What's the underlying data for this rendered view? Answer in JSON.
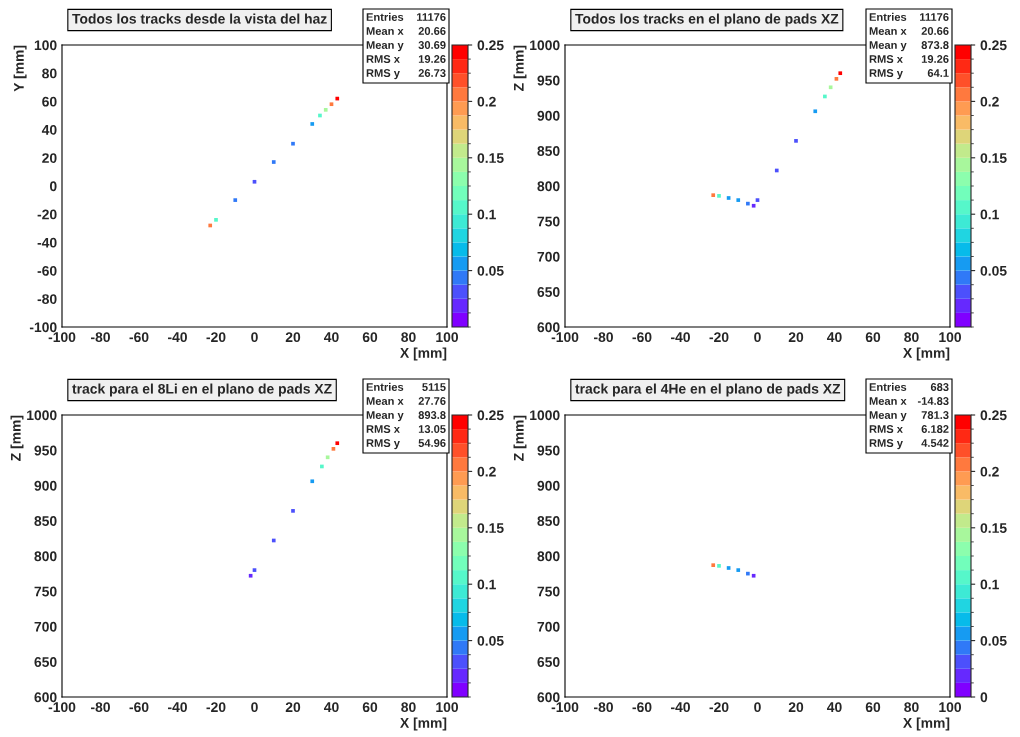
{
  "chart_data": [
    {
      "type": "scatter",
      "title": "Todos los tracks desde la vista del haz",
      "xlabel": "X [mm]",
      "ylabel": "Y [mm]",
      "x": [
        -23,
        -20,
        -10,
        0,
        10,
        20,
        30,
        34,
        37,
        40,
        43
      ],
      "values": [
        -28,
        -24,
        -10,
        3,
        17,
        30,
        44,
        50,
        54,
        58,
        62
      ],
      "cvalues": [
        0.2,
        0.1,
        0.04,
        0.03,
        0.04,
        0.04,
        0.05,
        0.1,
        0.15,
        0.2,
        0.25
      ],
      "xlim": [
        -100,
        100
      ],
      "ylim": [
        -100,
        100
      ],
      "xticks": [
        -100,
        -80,
        -60,
        -40,
        -20,
        0,
        20,
        40,
        60,
        80,
        100
      ],
      "yticks": [
        -100,
        -80,
        -60,
        -40,
        -20,
        0,
        20,
        40,
        60,
        80,
        100
      ],
      "clim": [
        0,
        0.25
      ],
      "cticks": [
        0.05,
        0.1,
        0.15,
        0.2,
        0.25
      ],
      "annotations": [
        "Entries 11176",
        "Mean x 20.66",
        "Mean y 30.69",
        "RMS x 19.26",
        "RMS y 26.73"
      ]
    },
    {
      "type": "scatter",
      "title": "Todos los tracks en el plano de pads XZ",
      "xlabel": "X [mm]",
      "ylabel": "Z [mm]",
      "x": [
        -23,
        -20,
        -15,
        -10,
        -5,
        -2,
        0,
        10,
        20,
        30,
        35,
        38,
        41,
        43
      ],
      "values": [
        787,
        786,
        783,
        780,
        775,
        772,
        780,
        822,
        864,
        906,
        927,
        940,
        952,
        960
      ],
      "cvalues": [
        0.2,
        0.1,
        0.06,
        0.05,
        0.04,
        0.02,
        0.03,
        0.03,
        0.03,
        0.05,
        0.1,
        0.15,
        0.2,
        0.25
      ],
      "xlim": [
        -100,
        100
      ],
      "ylim": [
        600,
        1000
      ],
      "xticks": [
        -100,
        -80,
        -60,
        -40,
        -20,
        0,
        20,
        40,
        60,
        80,
        100
      ],
      "yticks": [
        600,
        650,
        700,
        750,
        800,
        850,
        900,
        950,
        1000
      ],
      "clim": [
        0,
        0.25
      ],
      "cticks": [
        0.05,
        0.1,
        0.15,
        0.2,
        0.25
      ],
      "annotations": [
        "Entries 11176",
        "Mean x 20.66",
        "Mean y 873.8",
        "RMS x 19.26",
        "RMS y 64.1"
      ]
    },
    {
      "type": "scatter",
      "title": "track para el 8Li en el plano de pads XZ",
      "xlabel": "X [mm]",
      "ylabel": "Z [mm]",
      "x": [
        -2,
        0,
        10,
        20,
        30,
        35,
        38,
        41,
        43
      ],
      "values": [
        772,
        780,
        822,
        864,
        906,
        927,
        940,
        952,
        960
      ],
      "cvalues": [
        0.02,
        0.03,
        0.03,
        0.03,
        0.05,
        0.1,
        0.15,
        0.2,
        0.25
      ],
      "xlim": [
        -100,
        100
      ],
      "ylim": [
        600,
        1000
      ],
      "xticks": [
        -100,
        -80,
        -60,
        -40,
        -20,
        0,
        20,
        40,
        60,
        80,
        100
      ],
      "yticks": [
        600,
        650,
        700,
        750,
        800,
        850,
        900,
        950,
        1000
      ],
      "clim": [
        0,
        0.25
      ],
      "cticks": [
        0.05,
        0.1,
        0.15,
        0.2,
        0.25
      ],
      "annotations": [
        "Entries 5115",
        "Mean x 27.76",
        "Mean y 893.8",
        "RMS x 13.05",
        "RMS y 54.96"
      ]
    },
    {
      "type": "scatter",
      "title": "track para el 4He en el plano de pads XZ",
      "xlabel": "X [mm]",
      "ylabel": "Z [mm]",
      "x": [
        -23,
        -20,
        -15,
        -10,
        -5,
        -2
      ],
      "values": [
        787,
        786,
        783,
        780,
        775,
        772
      ],
      "cvalues": [
        0.2,
        0.1,
        0.06,
        0.05,
        0.04,
        0.02
      ],
      "xlim": [
        -100,
        100
      ],
      "ylim": [
        600,
        1000
      ],
      "xticks": [
        -100,
        -80,
        -60,
        -40,
        -20,
        0,
        20,
        40,
        60,
        80,
        100
      ],
      "yticks": [
        600,
        650,
        700,
        750,
        800,
        850,
        900,
        950,
        1000
      ],
      "clim": [
        0,
        0.25
      ],
      "cticks": [
        0,
        0.05,
        0.1,
        0.15,
        0.2,
        0.25
      ],
      "annotations": [
        "Entries 683",
        "Mean x -14.83",
        "Mean y 781.3",
        "RMS x 6.182",
        "RMS y 4.542"
      ]
    }
  ]
}
